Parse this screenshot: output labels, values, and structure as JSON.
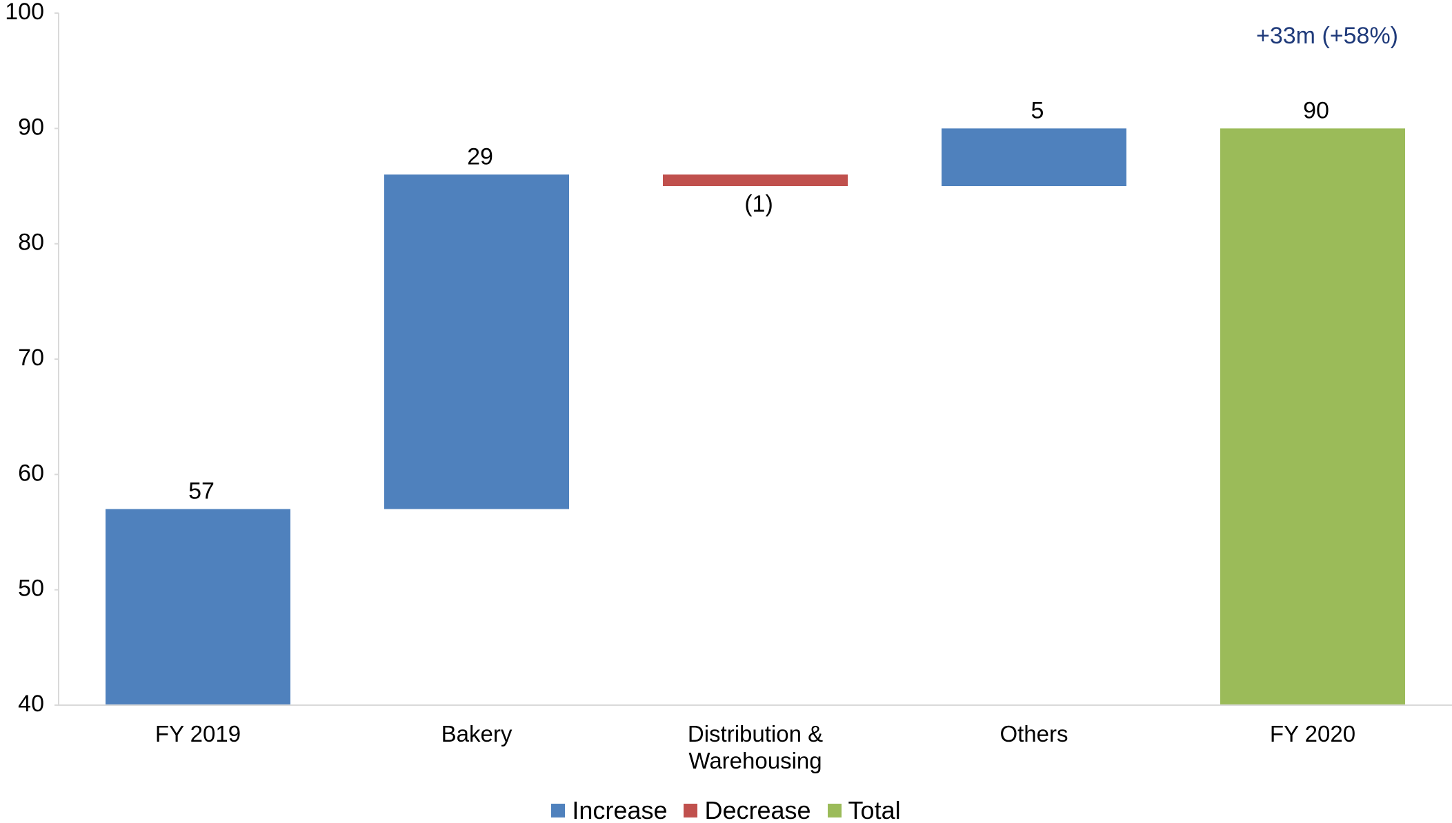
{
  "chart_data": {
    "type": "waterfall",
    "annotation": "+33m (+58%)",
    "categories": [
      "FY 2019",
      "Bakery",
      "Distribution & Warehousing",
      "Others",
      "FY 2020"
    ],
    "values": [
      57,
      29,
      -1,
      5,
      90
    ],
    "value_labels": [
      "57",
      "29",
      "(1)",
      "5",
      "90"
    ],
    "measure": [
      "absolute",
      "relative",
      "relative",
      "relative",
      "total"
    ],
    "series": [
      {
        "name": "Increase",
        "color": "#4f81bd"
      },
      {
        "name": "Decrease",
        "color": "#c0504d"
      },
      {
        "name": "Total",
        "color": "#9bbb59"
      }
    ],
    "ylim": [
      40,
      100
    ],
    "yticks": [
      40,
      50,
      60,
      70,
      80,
      90,
      100
    ],
    "grid": false,
    "legend": "bottom"
  }
}
